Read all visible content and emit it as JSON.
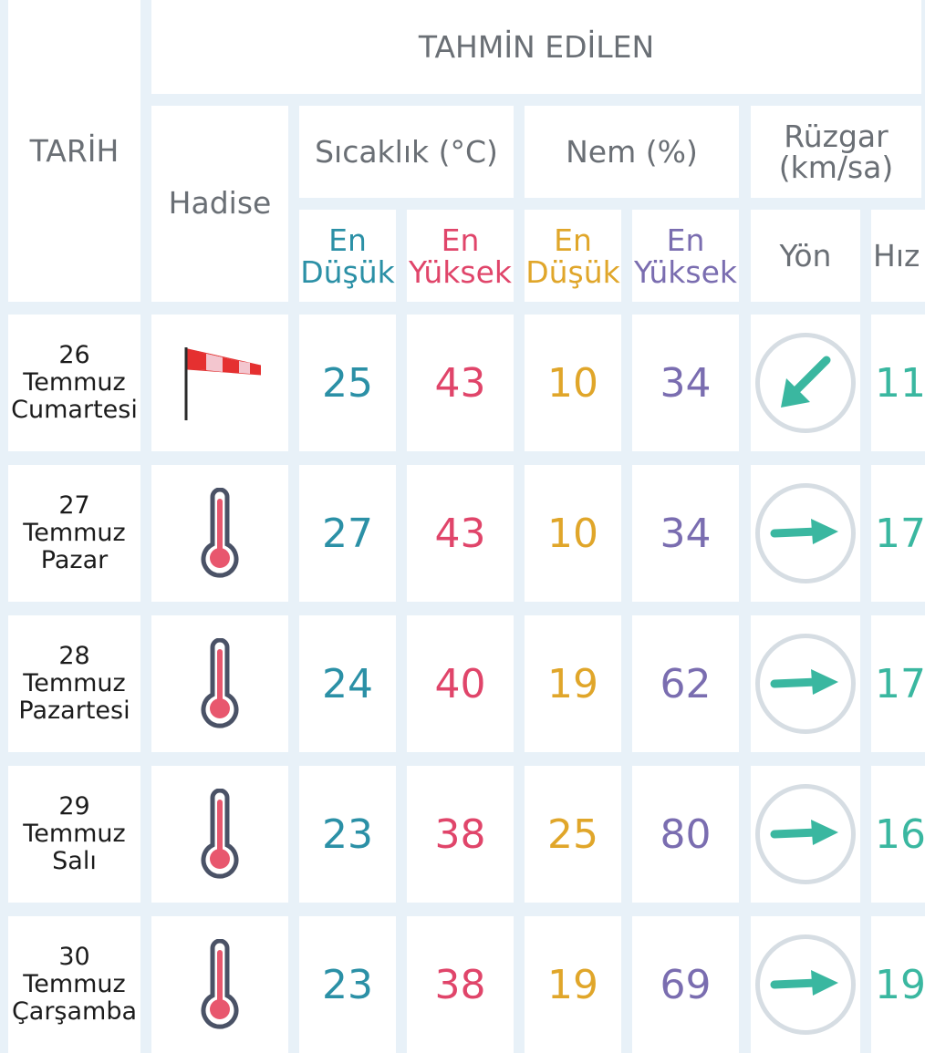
{
  "header": {
    "date_label": "TARİH",
    "forecast_label": "TAHMİN EDİLEN",
    "event_label": "Hadise",
    "temp_label": "Sıcaklık (°C)",
    "humidity_label": "Nem (%)",
    "wind_label": "Rüzgar (km/sa)",
    "min_label": "En Düşük",
    "max_label": "En Yüksek",
    "direction_label": "Yön",
    "speed_label": "Hız"
  },
  "colors": {
    "temp_min": "#2b90a6",
    "temp_max": "#e0456a",
    "hum_min": "#e0a62a",
    "hum_max": "#7a6db0",
    "wind": "#3ab7a0"
  },
  "rows": [
    {
      "day": "26",
      "month": "Temmuz",
      "weekday": "Cumartesi",
      "event_icon": "windsock-icon",
      "temp_min": "25",
      "temp_max": "43",
      "hum_min": "10",
      "hum_max": "34",
      "wind_dir": "southwest-arrow-icon",
      "wind_speed": "11"
    },
    {
      "day": "27",
      "month": "Temmuz",
      "weekday": "Pazar",
      "event_icon": "thermometer-hot-icon",
      "temp_min": "27",
      "temp_max": "43",
      "hum_min": "10",
      "hum_max": "34",
      "wind_dir": "east-arrow-icon",
      "wind_speed": "17"
    },
    {
      "day": "28",
      "month": "Temmuz",
      "weekday": "Pazartesi",
      "event_icon": "thermometer-hot-icon",
      "temp_min": "24",
      "temp_max": "40",
      "hum_min": "19",
      "hum_max": "62",
      "wind_dir": "east-arrow-icon",
      "wind_speed": "17"
    },
    {
      "day": "29",
      "month": "Temmuz",
      "weekday": "Salı",
      "event_icon": "thermometer-hot-icon",
      "temp_min": "23",
      "temp_max": "38",
      "hum_min": "25",
      "hum_max": "80",
      "wind_dir": "east-arrow-icon",
      "wind_speed": "16"
    },
    {
      "day": "30",
      "month": "Temmuz",
      "weekday": "Çarşamba",
      "event_icon": "thermometer-hot-icon",
      "temp_min": "23",
      "temp_max": "38",
      "hum_min": "19",
      "hum_max": "69",
      "wind_dir": "east-arrow-icon",
      "wind_speed": "19"
    }
  ]
}
